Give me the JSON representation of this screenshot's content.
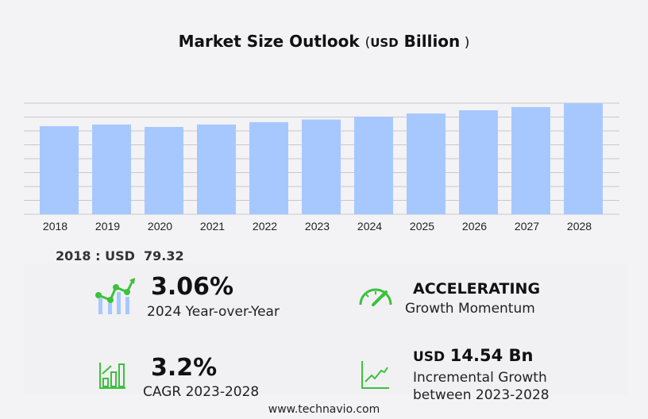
{
  "title": {
    "main": "Market Size Outlook",
    "unit": "USD",
    "suffix": "Billion"
  },
  "chart_data": {
    "type": "bar",
    "title": "Market Size Outlook (USD Billion)",
    "categories": [
      "2018",
      "2019",
      "2020",
      "2021",
      "2022",
      "2023",
      "2024",
      "2025",
      "2026",
      "2027",
      "2028"
    ],
    "values": [
      79.32,
      80.8,
      78.6,
      80.8,
      82.9,
      85.3,
      87.9,
      90.7,
      93.6,
      96.5,
      99.8
    ],
    "ylim": [
      0,
      100
    ],
    "grid": true,
    "bar_color": "#a6c8ff"
  },
  "base_year": "2018 : USD  79.32",
  "stats": {
    "yoy": {
      "value": "3.06%",
      "label": "2024 Year-over-Year",
      "icon": "bar-line-chart-icon"
    },
    "momentum": {
      "value": "ACCELERATING",
      "label": "Growth Momentum",
      "icon": "speedometer-icon"
    },
    "cagr": {
      "value": "3.2%",
      "label": "CAGR 2023-2028",
      "icon": "growth-bars-icon"
    },
    "incremental": {
      "unit": "USD",
      "value": "14.54 Bn",
      "label1": "Incremental Growth",
      "label2": "between 2023-2028",
      "icon": "trend-up-icon"
    }
  },
  "accent": "#3cc13c",
  "footer": "www.technavio.com"
}
